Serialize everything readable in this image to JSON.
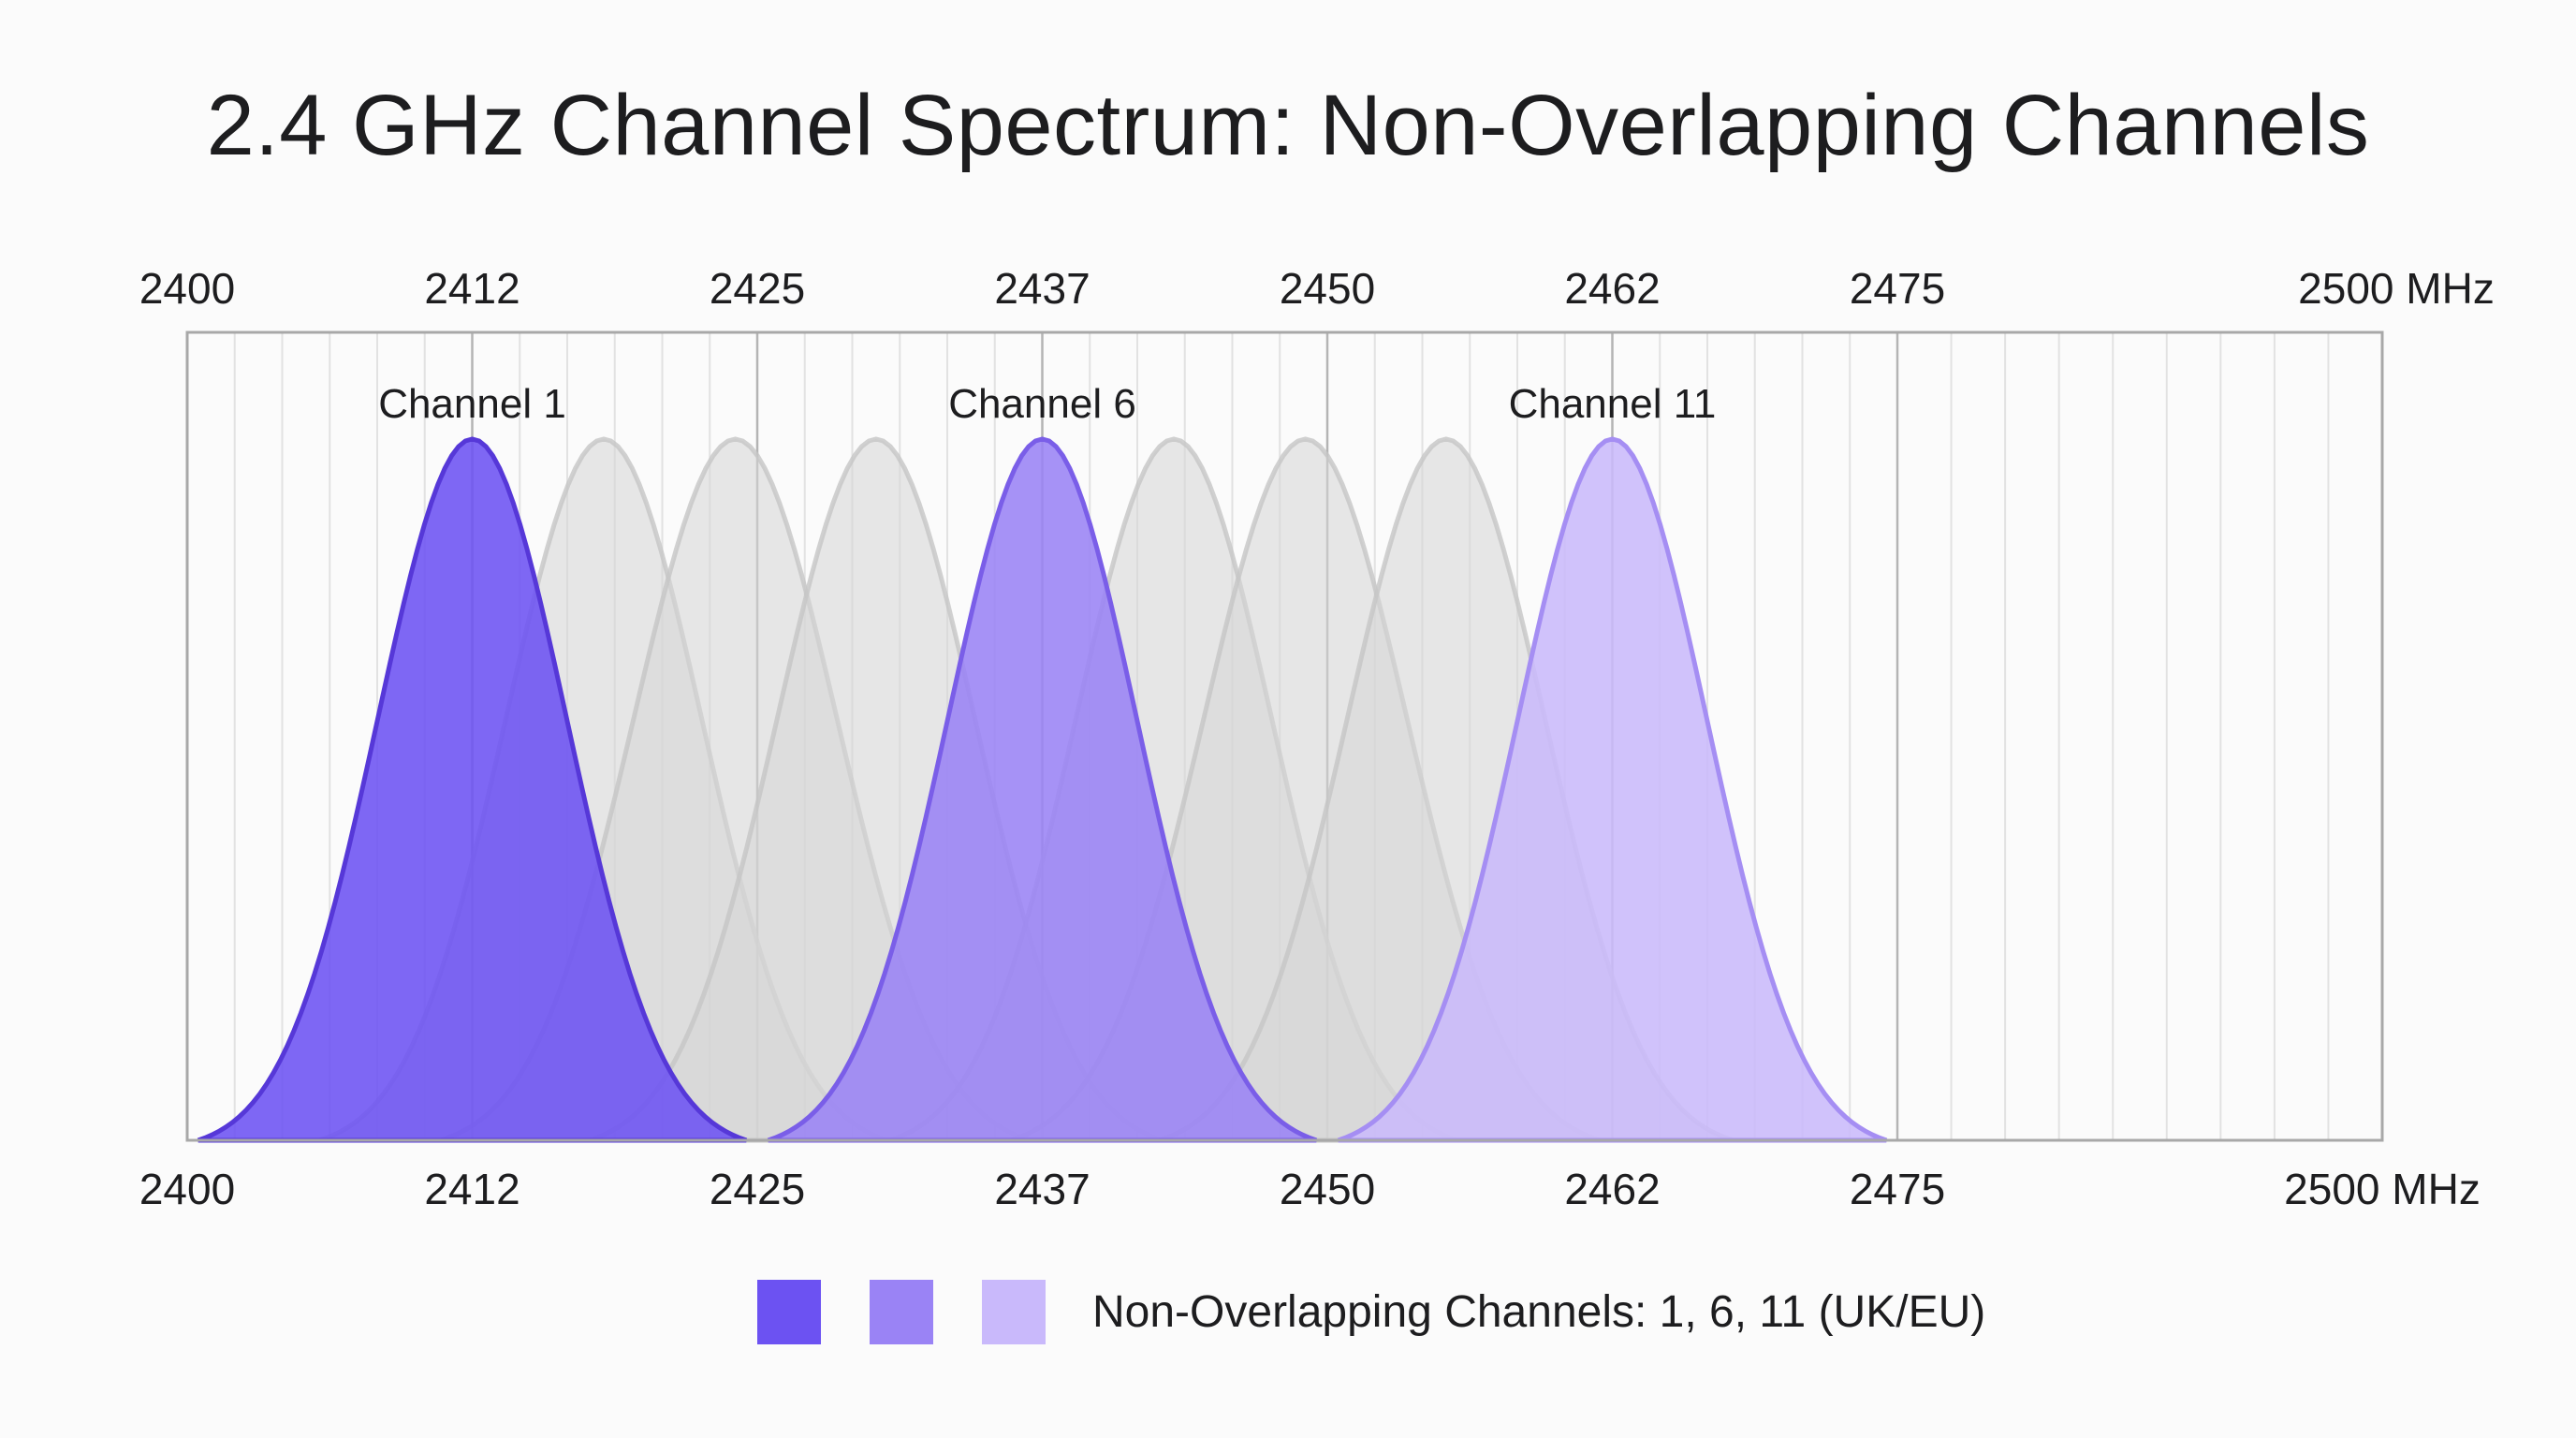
{
  "chart_data": {
    "type": "area",
    "title": "2.4 GHz Channel Spectrum: Non-Overlapping Channels",
    "x_ticks": [
      {
        "value": 2400,
        "label": "2400"
      },
      {
        "value": 2412,
        "label": "2412"
      },
      {
        "value": 2425,
        "label": "2425"
      },
      {
        "value": 2437,
        "label": "2437"
      },
      {
        "value": 2450,
        "label": "2450"
      },
      {
        "value": 2462,
        "label": "2462"
      },
      {
        "value": 2475,
        "label": "2475"
      },
      {
        "value": 2500,
        "label": "2500 MHz"
      }
    ],
    "xlim": [
      2400,
      2500
    ],
    "channel_half_width_mhz": 12.5,
    "grid": true,
    "highlighted_channels": [
      {
        "label": "Channel 1",
        "center": 2412,
        "peak": 1,
        "fill": "#6c52f2",
        "stroke": "#5638d8"
      },
      {
        "label": "Channel 6",
        "center": 2437,
        "peak": 1,
        "fill": "#9a83f5",
        "stroke": "#7a5ee8"
      },
      {
        "label": "Channel 11",
        "center": 2462,
        "peak": 1,
        "fill": "#c9b9fb",
        "stroke": "#a58ef3"
      }
    ],
    "overlapping_channels": [
      {
        "center": 2418,
        "peak": 1
      },
      {
        "center": 2424,
        "peak": 1
      },
      {
        "center": 2430,
        "peak": 1
      },
      {
        "center": 2443,
        "peak": 1
      },
      {
        "center": 2449,
        "peak": 1
      },
      {
        "center": 2455,
        "peak": 1
      }
    ],
    "overlap_color": "#d6d6d6",
    "legend": {
      "placement": "bottom",
      "swatches": [
        "#6c52f2",
        "#9a83f5",
        "#c9b9fb"
      ],
      "label": "Non-Overlapping Channels: 1, 6, 11 (UK/EU)"
    }
  }
}
